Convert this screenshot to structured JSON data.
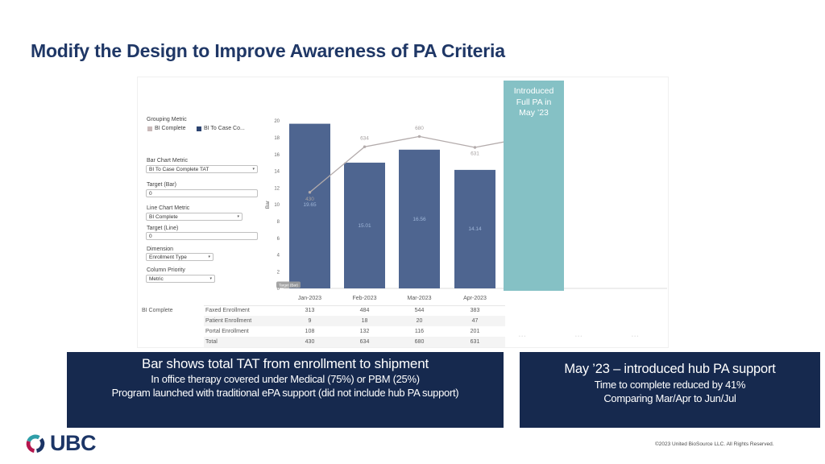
{
  "slide": {
    "title": "Modify the Design to Improve Awareness of PA Criteria",
    "accent_navy": "#16294e"
  },
  "dashboard": {
    "controls": {
      "grouping_label": "Grouping Metric",
      "legend": [
        {
          "label": "BI Complete",
          "color": "#c9b9b9"
        },
        {
          "label": "BI To Case Co...",
          "color": "#2c4470"
        }
      ],
      "fields": [
        {
          "label": "Bar Chart Metric",
          "value": "BI To Case Complete TAT",
          "type": "dropdown"
        },
        {
          "label": "Target (Bar)",
          "value": "0",
          "type": "input"
        },
        {
          "label": "Line Chart Metric",
          "value": "BI Complete",
          "type": "dropdown"
        },
        {
          "label": "Target (Line)",
          "value": "0",
          "type": "input"
        },
        {
          "label": "Dimension",
          "value": "Enrollment Type",
          "type": "dropdown"
        },
        {
          "label": "Column Priority",
          "value": "Metric",
          "type": "dropdown"
        }
      ]
    },
    "chart_data": {
      "type": "bar",
      "categories": [
        "Jan-2023",
        "Feb-2023",
        "Mar-2023",
        "Apr-2023"
      ],
      "series": [
        {
          "name": "BI To Case Complete TAT",
          "type": "bar",
          "values": [
            19.65,
            15.01,
            16.56,
            14.14
          ],
          "color": "#4e6590"
        },
        {
          "name": "BI Complete",
          "type": "line",
          "values": [
            430,
            634,
            680,
            631
          ],
          "color": "#b3abab"
        }
      ],
      "ylabel": "Bar",
      "ylim": [
        0,
        20
      ],
      "yticks": [
        0,
        2,
        4,
        6,
        8,
        10,
        12,
        14,
        16,
        18,
        20
      ],
      "target_chip": "Target (Bar)",
      "annotation": {
        "text": "Introduced Full PA in May ’23",
        "color": "#85c1c5"
      }
    },
    "table": {
      "group_label": "BI Complete",
      "columns": [
        "Jan-2023",
        "Feb-2023",
        "Mar-2023",
        "Apr-2023"
      ],
      "rows": [
        {
          "label": "Faxed Enrollment",
          "values": [
            "313",
            "484",
            "544",
            "383"
          ]
        },
        {
          "label": "Patient Enrollment",
          "values": [
            "9",
            "18",
            "20",
            "47"
          ]
        },
        {
          "label": "Portal Enrollment",
          "values": [
            "108",
            "132",
            "116",
            "201"
          ]
        },
        {
          "label": "Total",
          "values": [
            "430",
            "634",
            "680",
            "631"
          ]
        }
      ]
    }
  },
  "callouts": {
    "left": {
      "heading": "Bar shows total TAT from enrollment to shipment",
      "lines": [
        "In office therapy covered under Medical (75%) or PBM (25%)",
        "Program launched with traditional ePA support (did not include hub PA support)"
      ]
    },
    "right": {
      "heading": "May ’23 – introduced hub PA support",
      "lines": [
        "Time to complete reduced by 41%",
        "Comparing Mar/Apr to Jun/Jul"
      ]
    }
  },
  "footer": {
    "logo_text": "UBC",
    "copyright": "©2023 United BioSource LLC. All Rights Reserved."
  }
}
